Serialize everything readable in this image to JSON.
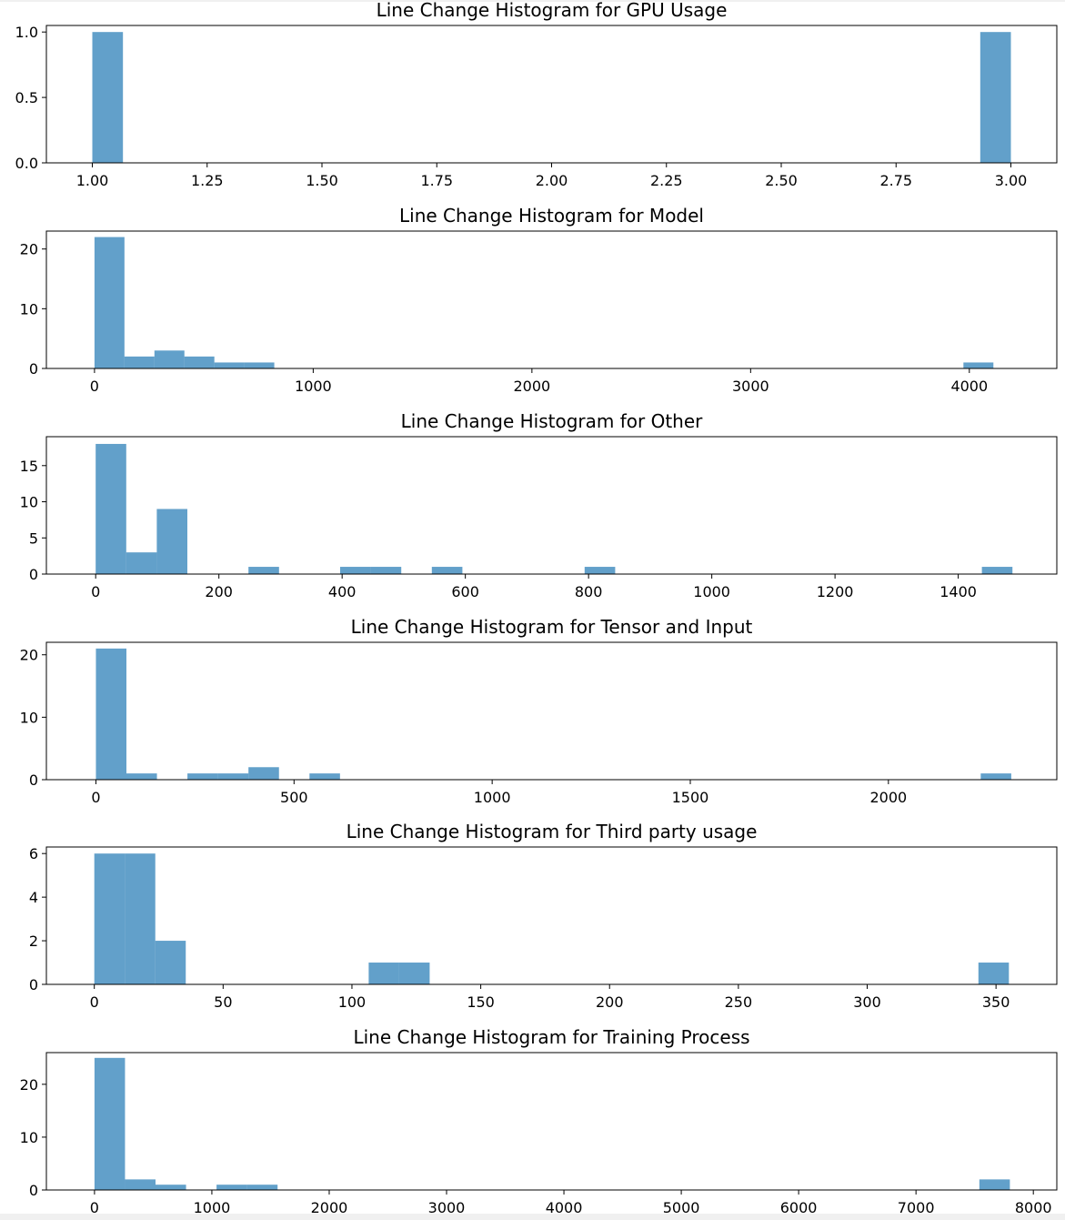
{
  "chart_data": [
    {
      "type": "bar",
      "title": "Line Change Histogram for GPU Usage",
      "xlabel": "",
      "ylabel": "",
      "xlim": [
        0.9,
        3.1
      ],
      "ylim": [
        0,
        1.05
      ],
      "xticks": [
        1.0,
        1.25,
        1.5,
        1.75,
        2.0,
        2.25,
        2.5,
        2.75,
        3.0
      ],
      "xtick_labels": [
        "1.00",
        "1.25",
        "1.50",
        "1.75",
        "2.00",
        "2.25",
        "2.50",
        "2.75",
        "3.00"
      ],
      "yticks": [
        0.0,
        0.5,
        1.0
      ],
      "ytick_labels": [
        "0.0",
        "0.5",
        "1.0"
      ],
      "bins": [
        {
          "x0": 1.0,
          "x1": 1.0667,
          "count": 1
        },
        {
          "x0": 2.9333,
          "x1": 3.0,
          "count": 1
        }
      ]
    },
    {
      "type": "bar",
      "title": "Line Change Histogram for Model",
      "xlabel": "",
      "ylabel": "",
      "xlim": [
        -220,
        4400
      ],
      "ylim": [
        0,
        23
      ],
      "xticks": [
        0,
        1000,
        2000,
        3000,
        4000
      ],
      "xtick_labels": [
        "0",
        "1000",
        "2000",
        "3000",
        "4000"
      ],
      "yticks": [
        0,
        10,
        20
      ],
      "ytick_labels": [
        "0",
        "10",
        "20"
      ],
      "bins": [
        {
          "x0": 0,
          "x1": 137,
          "count": 22
        },
        {
          "x0": 137,
          "x1": 274,
          "count": 2
        },
        {
          "x0": 274,
          "x1": 411,
          "count": 3
        },
        {
          "x0": 411,
          "x1": 548,
          "count": 2
        },
        {
          "x0": 548,
          "x1": 685,
          "count": 1
        },
        {
          "x0": 685,
          "x1": 822,
          "count": 1
        },
        {
          "x0": 3973,
          "x1": 4110,
          "count": 1
        }
      ]
    },
    {
      "type": "bar",
      "title": "Line Change Histogram for Other",
      "xlabel": "",
      "ylabel": "",
      "xlim": [
        -80,
        1560
      ],
      "ylim": [
        0,
        19
      ],
      "xticks": [
        0,
        200,
        400,
        600,
        800,
        1000,
        1200,
        1400
      ],
      "xtick_labels": [
        "0",
        "200",
        "400",
        "600",
        "800",
        "1000",
        "1200",
        "1400"
      ],
      "yticks": [
        0,
        5,
        10,
        15
      ],
      "ytick_labels": [
        "0",
        "5",
        "10",
        "15"
      ],
      "bins": [
        {
          "x0": 0,
          "x1": 49.6,
          "count": 18
        },
        {
          "x0": 49.6,
          "x1": 99.2,
          "count": 3
        },
        {
          "x0": 99.2,
          "x1": 148.8,
          "count": 9
        },
        {
          "x0": 248,
          "x1": 297.6,
          "count": 1
        },
        {
          "x0": 396.8,
          "x1": 446.4,
          "count": 1
        },
        {
          "x0": 446.4,
          "x1": 496,
          "count": 1
        },
        {
          "x0": 545.6,
          "x1": 595.2,
          "count": 1
        },
        {
          "x0": 793.6,
          "x1": 843.2,
          "count": 1
        },
        {
          "x0": 1438.4,
          "x1": 1488,
          "count": 1
        }
      ]
    },
    {
      "type": "bar",
      "title": "Line Change Histogram for Tensor and Input",
      "xlabel": "",
      "ylabel": "",
      "xlim": [
        -125,
        2425
      ],
      "ylim": [
        0,
        22
      ],
      "xticks": [
        0,
        500,
        1000,
        1500,
        2000
      ],
      "xtick_labels": [
        "0",
        "500",
        "1000",
        "1500",
        "2000"
      ],
      "yticks": [
        0,
        10,
        20
      ],
      "ytick_labels": [
        "0",
        "10",
        "20"
      ],
      "bins": [
        {
          "x0": 0,
          "x1": 77,
          "count": 21
        },
        {
          "x0": 77,
          "x1": 154,
          "count": 1
        },
        {
          "x0": 231,
          "x1": 308,
          "count": 1
        },
        {
          "x0": 308,
          "x1": 385,
          "count": 1
        },
        {
          "x0": 385,
          "x1": 462,
          "count": 2
        },
        {
          "x0": 539,
          "x1": 616,
          "count": 1
        },
        {
          "x0": 2233,
          "x1": 2310,
          "count": 1
        }
      ]
    },
    {
      "type": "bar",
      "title": "Line Change Histogram for Third party usage",
      "xlabel": "",
      "ylabel": "",
      "xlim": [
        -18.6,
        373.6
      ],
      "ylim": [
        0,
        6.3
      ],
      "xticks": [
        0,
        50,
        100,
        150,
        200,
        250,
        300,
        350
      ],
      "xtick_labels": [
        "0",
        "50",
        "100",
        "150",
        "200",
        "250",
        "300",
        "350"
      ],
      "yticks": [
        0,
        2,
        4,
        6
      ],
      "ytick_labels": [
        "0",
        "2",
        "4",
        "6"
      ],
      "bins": [
        {
          "x0": 0,
          "x1": 11.83,
          "count": 6
        },
        {
          "x0": 11.83,
          "x1": 23.67,
          "count": 6
        },
        {
          "x0": 23.67,
          "x1": 35.5,
          "count": 2
        },
        {
          "x0": 106.5,
          "x1": 118.33,
          "count": 1
        },
        {
          "x0": 118.33,
          "x1": 130.17,
          "count": 1
        },
        {
          "x0": 343.17,
          "x1": 355,
          "count": 1
        }
      ]
    },
    {
      "type": "bar",
      "title": "Line Change Histogram for Training Process",
      "xlabel": "",
      "ylabel": "",
      "xlim": [
        -410,
        8200
      ],
      "ylim": [
        0,
        26
      ],
      "xticks": [
        0,
        1000,
        2000,
        3000,
        4000,
        5000,
        6000,
        7000,
        8000
      ],
      "xtick_labels": [
        "0",
        "1000",
        "2000",
        "3000",
        "4000",
        "5000",
        "6000",
        "7000",
        "8000"
      ],
      "yticks": [
        0,
        10,
        20
      ],
      "ytick_labels": [
        "0",
        "10",
        "20"
      ],
      "bins": [
        {
          "x0": 0,
          "x1": 260,
          "count": 25
        },
        {
          "x0": 260,
          "x1": 520,
          "count": 2
        },
        {
          "x0": 520,
          "x1": 780,
          "count": 1
        },
        {
          "x0": 1040,
          "x1": 1300,
          "count": 1
        },
        {
          "x0": 1300,
          "x1": 1560,
          "count": 1
        },
        {
          "x0": 7540,
          "x1": 7800,
          "count": 2
        }
      ]
    }
  ],
  "style": {
    "bar_color": "#1f77b4",
    "bar_opacity": 0.7,
    "axis_color": "#000000",
    "background": "#ffffff",
    "grid": false,
    "legend": "none"
  }
}
